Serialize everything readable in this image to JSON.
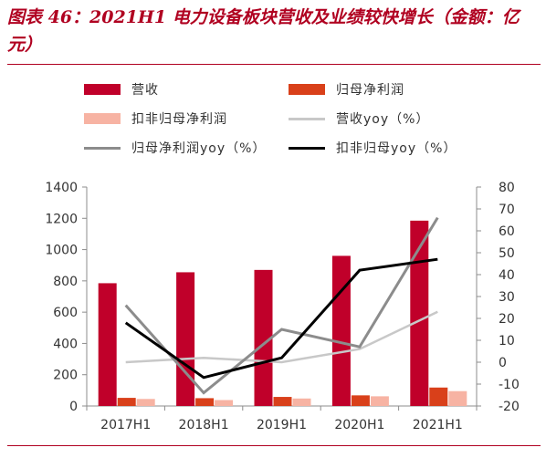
{
  "header": {
    "title": "图表 46：2021H1 电力设备板块营收及业绩较快增长（金额：亿元）"
  },
  "colors": {
    "accent": "#b00020",
    "revenue": "#c0002a",
    "net_profit": "#d9401a",
    "deducted_profit": "#f7b3a3",
    "revenue_yoy": "#c8c8c8",
    "net_profit_yoy": "#8c8c8c",
    "deducted_yoy": "#000000"
  },
  "chart_data": {
    "type": "bar",
    "categories": [
      "2017H1",
      "2018H1",
      "2019H1",
      "2020H1",
      "2021H1"
    ],
    "series": [
      {
        "name": "营收",
        "type": "bar",
        "axis": "left",
        "color": "#c0002a",
        "values": [
          785,
          855,
          870,
          960,
          1185
        ]
      },
      {
        "name": "归母净利润",
        "type": "bar",
        "axis": "left",
        "color": "#d9401a",
        "values": [
          52,
          50,
          58,
          68,
          118
        ]
      },
      {
        "name": "扣非归母净利润",
        "type": "bar",
        "axis": "left",
        "color": "#f7b3a3",
        "values": [
          45,
          38,
          48,
          62,
          95
        ]
      },
      {
        "name": "营收yoy（%）",
        "type": "line",
        "axis": "right",
        "color": "#c8c8c8",
        "values": [
          0,
          2,
          0,
          6,
          23
        ]
      },
      {
        "name": "归母净利润yoy（%）",
        "type": "line",
        "axis": "right",
        "color": "#8c8c8c",
        "values": [
          26,
          -14,
          15,
          7,
          66
        ]
      },
      {
        "name": "扣非归母yoy（%）",
        "type": "line",
        "axis": "right",
        "color": "#000000",
        "values": [
          18,
          -7,
          2,
          42,
          47
        ]
      }
    ],
    "ylim": [
      0,
      1400
    ],
    "y_ticks": [
      "0",
      "200",
      "400",
      "600",
      "800",
      "1000",
      "1200",
      "1400"
    ],
    "y2lim": [
      -20,
      80
    ],
    "y2_ticks": [
      "-20",
      "-10",
      "0",
      "10",
      "20",
      "30",
      "40",
      "50",
      "60",
      "70",
      "80"
    ],
    "grid": false,
    "legend_position": "top"
  }
}
